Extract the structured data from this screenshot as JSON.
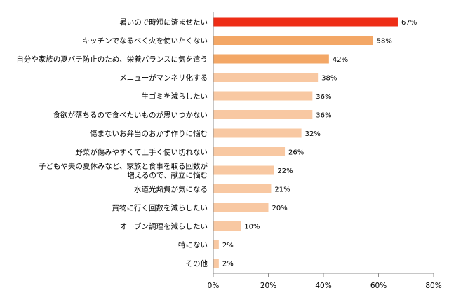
{
  "chart_data": {
    "type": "bar",
    "orientation": "horizontal",
    "categories": [
      "暑いので時短に済ませたい",
      "キッチンでなるべく火を使いたくない",
      "自分や家族の夏バテ防止のため、栄養バランスに気を遣う",
      "メニューがマンネリ化する",
      "生ゴミを減らしたい",
      "食欲が落ちるので食べたいものが思いつかない",
      "傷まないお弁当のおかず作りに悩む",
      "野菜が傷みやすくて上手く使い切れない",
      "子どもや夫の夏休みなど、家族と食事を取る回数が\n増えるので、献立に悩む",
      "水道光熱費が気になる",
      "買物に行く回数を減らしたい",
      "オーブン調理を減らしたい",
      "特にない",
      "その他"
    ],
    "values": [
      67,
      58,
      42,
      38,
      36,
      36,
      32,
      26,
      22,
      21,
      20,
      10,
      2,
      2
    ],
    "value_labels": [
      "67%",
      "58%",
      "42%",
      "38%",
      "36%",
      "36%",
      "32%",
      "26%",
      "22%",
      "21%",
      "20%",
      "10%",
      "2%",
      "2%"
    ],
    "bar_colors": [
      "#ee2d16",
      "#f3a766",
      "#f3a766",
      "#f8c8a2",
      "#f8c8a2",
      "#f8c8a2",
      "#f8c8a2",
      "#f8c8a2",
      "#f8c8a2",
      "#f8c8a2",
      "#f8c8a2",
      "#f8c8a2",
      "#f8c8a2",
      "#f8c8a2"
    ],
    "xlim": [
      0,
      80
    ],
    "xticks": [
      0,
      20,
      40,
      60,
      80
    ],
    "xtick_labels": [
      "0%",
      "20%",
      "40%",
      "60%",
      "80%"
    ],
    "grid": false
  }
}
